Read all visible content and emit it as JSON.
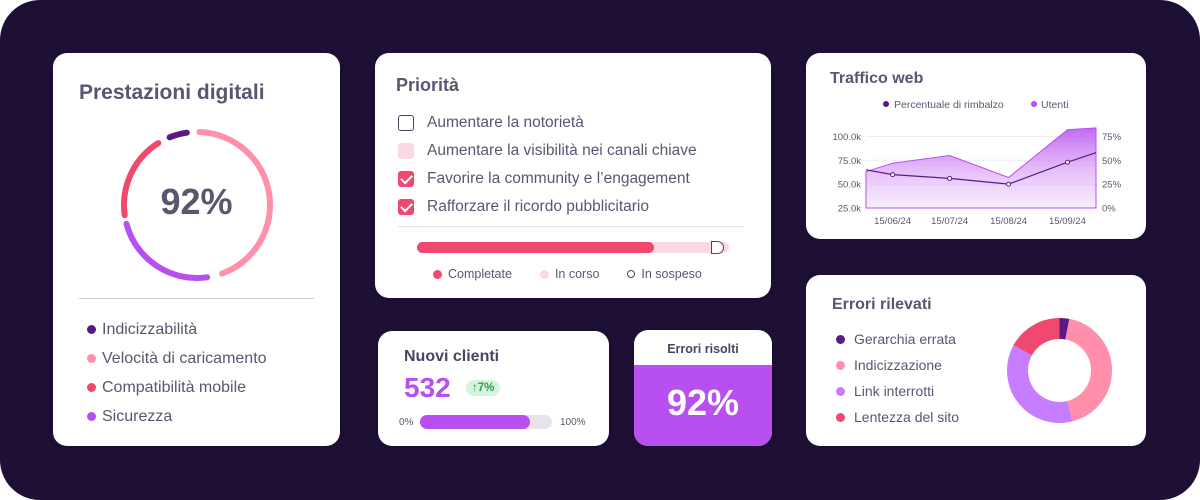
{
  "colors": {
    "background": "#1e0f35",
    "dark_purple": "#5a1a84",
    "pink": "#ff8fab",
    "red_pink": "#f0486e",
    "purple": "#b84ff0",
    "light_pink": "#fbd9e3"
  },
  "performance": {
    "title": "Prestazioni digitali",
    "percent": "92%",
    "legend": [
      {
        "label": "Indicizzabilità",
        "color": "#5a1a84"
      },
      {
        "label": "Velocità di caricamento",
        "color": "#ff8fab"
      },
      {
        "label": "Compatibilità mobile",
        "color": "#f0486e"
      },
      {
        "label": "Sicurezza",
        "color": "#b84ff0"
      }
    ]
  },
  "priorities": {
    "title": "Priorità",
    "items": [
      {
        "label": "Aumentare la notorietà",
        "state": "sospeso"
      },
      {
        "label": "Aumentare la visibilità nei canali chiave",
        "state": "in_corso"
      },
      {
        "label": "Favorire la community e l’engagement",
        "state": "completata"
      },
      {
        "label": "Rafforzare il ricordo pubblicitario",
        "state": "completata"
      }
    ],
    "progress": {
      "completed_fraction": 0.76,
      "in_progress_fraction": 0.2
    },
    "legend": {
      "completed": "Completate",
      "in_progress": "In corso",
      "pending": "In sospeso"
    }
  },
  "traffic": {
    "title": "Traffico web",
    "legend": {
      "bounce": "Percentuale di rimbalzo",
      "users": "Utenti"
    }
  },
  "chart_data": {
    "type": "area",
    "title": "Traffico web",
    "x_ticks": [
      "15/06/24",
      "15/07/24",
      "15/08/24",
      "15/09/24"
    ],
    "y_left_ticks": [
      "25.0k",
      "50.0k",
      "75.0k",
      "100.0k"
    ],
    "y_right_ticks": [
      "0%",
      "25%",
      "50%",
      "75%"
    ],
    "ylim_left": [
      25000,
      112000
    ],
    "ylim_right": [
      0,
      87
    ],
    "series": [
      {
        "name": "Utenti",
        "axis": "left",
        "type": "area",
        "color": "#b84ff0",
        "x": [
          "2024-06-01",
          "2024-06-15",
          "2024-07-15",
          "2024-08-15",
          "2024-09-15",
          "2024-09-30"
        ],
        "values": [
          63000,
          72000,
          80000,
          57000,
          107000,
          109000
        ]
      },
      {
        "name": "Percentuale di rimbalzo",
        "axis": "right",
        "type": "line",
        "color": "#5a1a84",
        "x": [
          "2024-06-01",
          "2024-06-15",
          "2024-07-15",
          "2024-08-15",
          "2024-09-15",
          "2024-09-30"
        ],
        "values": [
          40,
          35,
          31,
          25,
          48,
          58
        ]
      }
    ],
    "grid": true,
    "legend_position": "top"
  },
  "clients": {
    "title": "Nuovi clienti",
    "value": "532",
    "change": "↑7%",
    "bar_min": "0%",
    "bar_max": "100%",
    "bar_fraction": 0.83
  },
  "resolved": {
    "title": "Errori risolti",
    "value": "92%"
  },
  "errors": {
    "title": "Errori rilevati",
    "items": [
      {
        "label": "Gerarchia errata",
        "color": "#5a1a84",
        "share": 0.03
      },
      {
        "label": "Indicizzazione",
        "color": "#ff8fab",
        "share": 0.43
      },
      {
        "label": "Link interrotti",
        "color": "#c77dff",
        "share": 0.37
      },
      {
        "label": "Lentezza del sito",
        "color": "#f0486e",
        "share": 0.17
      }
    ]
  }
}
